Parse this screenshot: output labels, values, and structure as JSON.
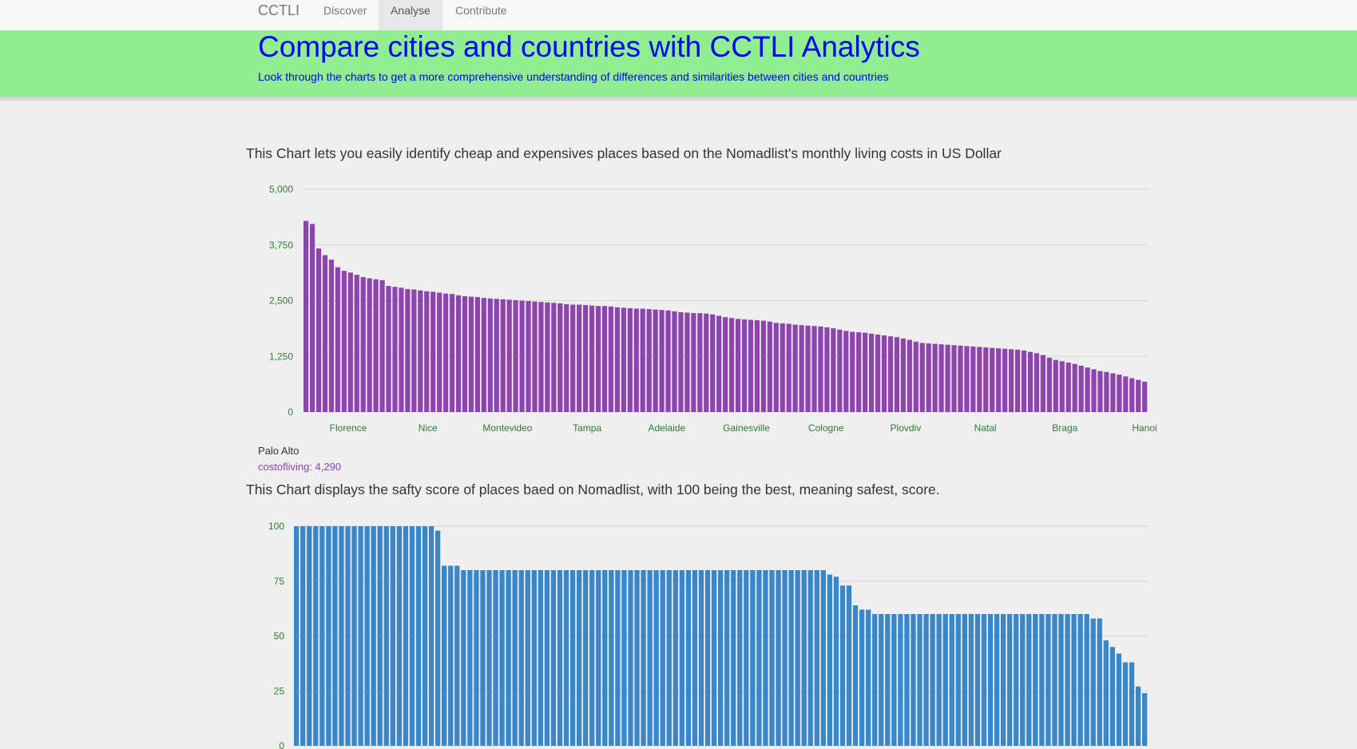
{
  "nav": {
    "brand": "CCTLI",
    "items": [
      {
        "label": "Discover",
        "active": false
      },
      {
        "label": "Analyse",
        "active": true
      },
      {
        "label": "Contribute",
        "active": false
      }
    ]
  },
  "hero": {
    "title": "Compare cities and countries with CCTLI Analytics",
    "subtitle": "Look through the charts to get a more comprehensive understanding of differences and similarities between cities and countries"
  },
  "colors": {
    "cost_bars": "#8e44ad",
    "safety_bars": "#3a87c8",
    "axis_text": "#2e7d32"
  },
  "cost_section": {
    "description": "This Chart lets you easily identify cheap and expensives places based on the Nomadlist's monthly living costs in US Dollar",
    "tooltip": {
      "name": "Palo Alto",
      "label": "costofliving: 4,290"
    }
  },
  "safety_section": {
    "description": "This Chart displays the safty score of places baed on Nomadlist, with 100 being the best, meaning safest, score."
  },
  "chart_data": [
    {
      "type": "bar",
      "title": "",
      "ylim": [
        0,
        5000
      ],
      "yticks": [
        "0",
        "1,250",
        "2,500",
        "3,750",
        "5,000"
      ],
      "grid": true,
      "xtick_labels": [
        "Florence",
        "Nice",
        "Montevideo",
        "Tampa",
        "Adelaide",
        "Gainesville",
        "Cologne",
        "Plovdiv",
        "Natal",
        "Braga",
        "Hanoi"
      ],
      "values": [
        4290,
        4220,
        3670,
        3520,
        3420,
        3250,
        3170,
        3130,
        3080,
        3030,
        3000,
        2980,
        2960,
        2830,
        2810,
        2790,
        2760,
        2750,
        2730,
        2710,
        2700,
        2680,
        2660,
        2650,
        2620,
        2600,
        2590,
        2580,
        2560,
        2550,
        2540,
        2530,
        2520,
        2510,
        2500,
        2490,
        2480,
        2470,
        2460,
        2450,
        2440,
        2420,
        2410,
        2410,
        2400,
        2390,
        2380,
        2380,
        2370,
        2350,
        2340,
        2330,
        2320,
        2320,
        2310,
        2300,
        2290,
        2280,
        2260,
        2240,
        2230,
        2220,
        2220,
        2210,
        2190,
        2160,
        2130,
        2110,
        2090,
        2080,
        2070,
        2060,
        2050,
        2030,
        2000,
        1990,
        1980,
        1960,
        1950,
        1940,
        1930,
        1920,
        1900,
        1880,
        1850,
        1820,
        1800,
        1790,
        1780,
        1760,
        1740,
        1720,
        1700,
        1680,
        1650,
        1620,
        1580,
        1550,
        1540,
        1530,
        1520,
        1510,
        1500,
        1490,
        1480,
        1470,
        1460,
        1450,
        1440,
        1430,
        1420,
        1410,
        1400,
        1380,
        1350,
        1320,
        1280,
        1220,
        1170,
        1140,
        1110,
        1080,
        1040,
        1000,
        960,
        920,
        900,
        870,
        840,
        800,
        760,
        720,
        680
      ]
    },
    {
      "type": "bar",
      "title": "",
      "ylim": [
        0,
        100
      ],
      "yticks": [
        "0",
        "25",
        "50",
        "75",
        "100"
      ],
      "grid": true,
      "values": [
        100,
        100,
        100,
        100,
        100,
        100,
        100,
        100,
        100,
        100,
        100,
        100,
        100,
        100,
        100,
        100,
        100,
        100,
        100,
        100,
        100,
        100,
        98,
        82,
        82,
        82,
        80,
        80,
        80,
        80,
        80,
        80,
        80,
        80,
        80,
        80,
        80,
        80,
        80,
        80,
        80,
        80,
        80,
        80,
        80,
        80,
        80,
        80,
        80,
        80,
        80,
        80,
        80,
        80,
        80,
        80,
        80,
        80,
        80,
        80,
        80,
        80,
        80,
        80,
        80,
        80,
        80,
        80,
        80,
        80,
        80,
        80,
        80,
        80,
        80,
        80,
        80,
        80,
        80,
        80,
        80,
        80,
        80,
        78,
        77,
        73,
        73,
        64,
        62,
        62,
        60,
        60,
        60,
        60,
        60,
        60,
        60,
        60,
        60,
        60,
        60,
        60,
        60,
        60,
        60,
        60,
        60,
        60,
        60,
        60,
        60,
        60,
        60,
        60,
        60,
        60,
        60,
        60,
        60,
        60,
        60,
        60,
        60,
        60,
        58,
        58,
        48,
        45,
        42,
        38,
        38,
        27,
        24
      ]
    }
  ]
}
